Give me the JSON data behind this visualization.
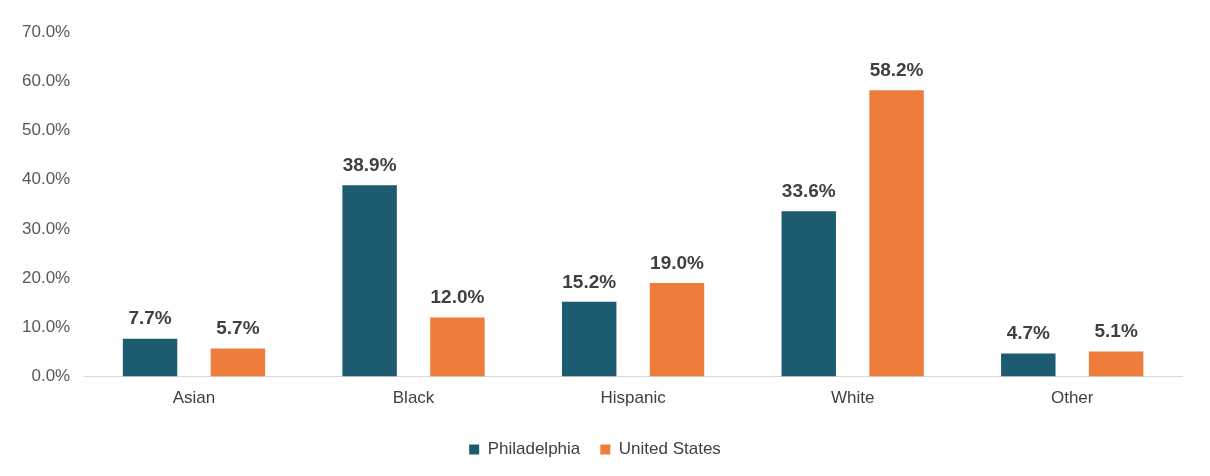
{
  "chart_data": {
    "type": "bar",
    "categories": [
      "Asian",
      "Black",
      "Hispanic",
      "White",
      "Other"
    ],
    "series": [
      {
        "name": "Philadelphia",
        "color": "#1d5c70",
        "values": [
          7.7,
          38.9,
          15.2,
          33.6,
          4.7
        ],
        "value_labels": [
          "7.7%",
          "38.9%",
          "15.2%",
          "33.6%",
          "4.7%"
        ]
      },
      {
        "name": "United States",
        "color": "#ee7d3b",
        "values": [
          5.7,
          12.0,
          19.0,
          58.2,
          5.1
        ],
        "value_labels": [
          "5.7%",
          "12.0%",
          "19.0%",
          "58.2%",
          "5.1%"
        ]
      }
    ],
    "ylim": [
      0,
      70
    ],
    "yticks": [
      {
        "value": 0,
        "label": "0.0%"
      },
      {
        "value": 10,
        "label": "10.0%"
      },
      {
        "value": 20,
        "label": "20.0%"
      },
      {
        "value": 30,
        "label": "30.0%"
      },
      {
        "value": 40,
        "label": "40.0%"
      },
      {
        "value": 50,
        "label": "50.0%"
      },
      {
        "value": 60,
        "label": "60.0%"
      },
      {
        "value": 70,
        "label": "70.0%"
      }
    ],
    "grid": false,
    "legend": "bottom"
  }
}
